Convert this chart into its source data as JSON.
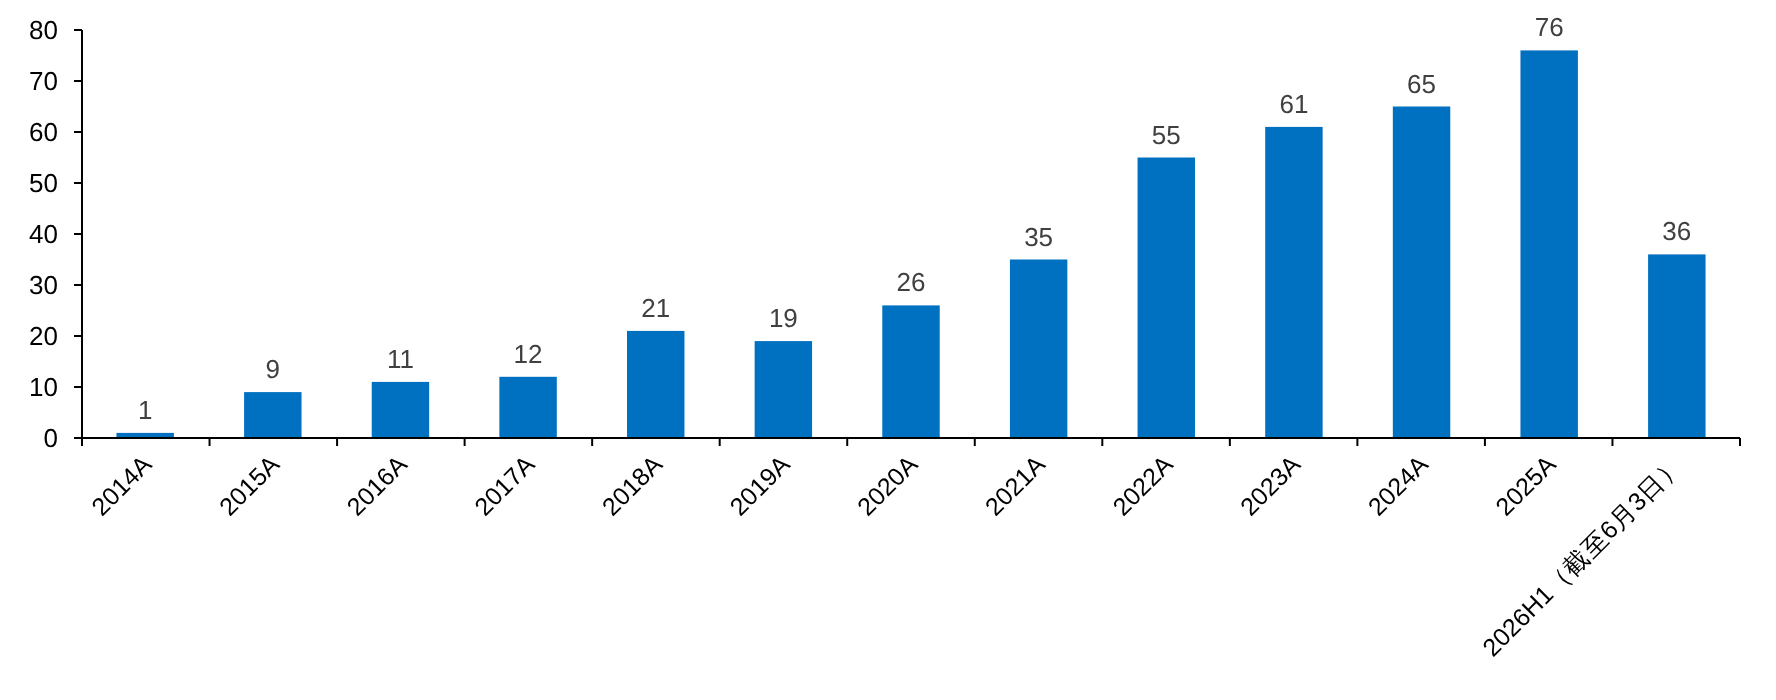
{
  "chart_data": {
    "type": "bar",
    "categories": [
      "2014A",
      "2015A",
      "2016A",
      "2017A",
      "2018A",
      "2019A",
      "2020A",
      "2021A",
      "2022A",
      "2023A",
      "2024A",
      "2025A",
      "2026H1（截至6月3日）"
    ],
    "values": [
      1,
      9,
      11,
      12,
      21,
      19,
      26,
      35,
      55,
      61,
      65,
      76,
      36
    ],
    "color": "#0070c0",
    "ylim": [
      0,
      80
    ],
    "yticks": [
      0,
      10,
      20,
      30,
      40,
      50,
      60,
      70,
      80
    ],
    "grid": false,
    "data_labels": true
  }
}
